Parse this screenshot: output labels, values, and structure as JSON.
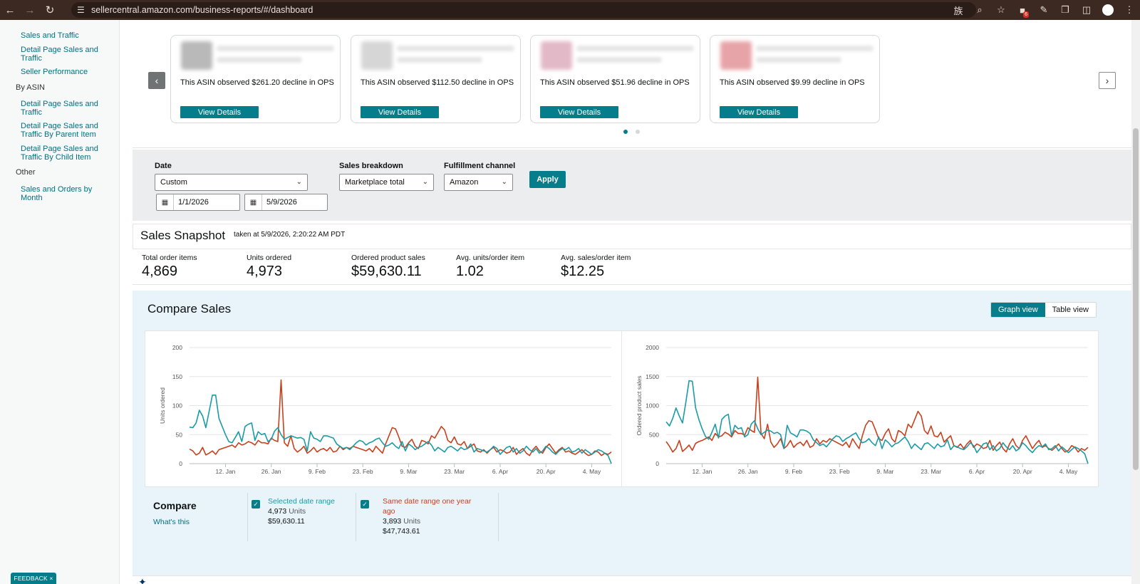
{
  "browser": {
    "url": "sellercentral.amazon.com/business-reports/#/dashboard",
    "extension_badge": "6"
  },
  "sidebar": {
    "items": [
      {
        "type": "link",
        "label": "Sales and Traffic"
      },
      {
        "type": "link",
        "label": "Detail Page Sales and Traffic"
      },
      {
        "type": "link",
        "label": "Seller Performance"
      },
      {
        "type": "heading",
        "label": "By ASIN"
      },
      {
        "type": "link",
        "label": "Detail Page Sales and Traffic"
      },
      {
        "type": "link",
        "label": "Detail Page Sales and Traffic By Parent Item"
      },
      {
        "type": "link",
        "label": "Detail Page Sales and Traffic By Child Item"
      },
      {
        "type": "heading",
        "label": "Other"
      },
      {
        "type": "link",
        "label": "Sales and Orders by Month"
      }
    ],
    "feedback_label": "FEEDBACK",
    "feedback_close": "×"
  },
  "carousel": {
    "cards": [
      {
        "text": "This ASIN observed $261.20 decline in OPS",
        "button": "View Details",
        "thumb_color": "#b9b9b9"
      },
      {
        "text": "This ASIN observed $112.50 decline in OPS",
        "button": "View Details",
        "thumb_color": "#d6d6d6"
      },
      {
        "text": "This ASIN observed $51.96 decline in OPS",
        "button": "View Details",
        "thumb_color": "#e2b9c7"
      },
      {
        "text": "This ASIN observed $9.99 decline in OPS",
        "button": "View Details",
        "thumb_color": "#e7a4a8"
      }
    ],
    "active_page": 1,
    "page_count": 2
  },
  "filters": {
    "date_label": "Date",
    "date_value": "Custom",
    "start_date": "1/1/2026",
    "end_date": "5/9/2026",
    "breakdown_label": "Sales breakdown",
    "breakdown_value": "Marketplace total",
    "channel_label": "Fulfillment channel",
    "channel_value": "Amazon",
    "apply_label": "Apply"
  },
  "snapshot": {
    "title": "Sales Snapshot",
    "taken_at": "taken at 5/9/2026, 2:20:22 AM PDT",
    "metrics": [
      {
        "label": "Total order items",
        "value": "4,869"
      },
      {
        "label": "Units ordered",
        "value": "4,973"
      },
      {
        "label": "Ordered product sales",
        "value": "$59,630.11"
      },
      {
        "label": "Avg. units/order item",
        "value": "1.02"
      },
      {
        "label": "Avg. sales/order item",
        "value": "$12.25"
      }
    ]
  },
  "compare": {
    "title": "Compare Sales",
    "graph_view_label": "Graph view",
    "table_view_label": "Table view",
    "legend_title": "Compare",
    "legend_help": "What's this",
    "series": [
      {
        "name": "Selected date range",
        "units_value": "4,973",
        "units_label": "Units",
        "sales": "$59,630.11",
        "color": "#1a9ba6"
      },
      {
        "name": "Same date range one year ago",
        "units_value": "3,893",
        "units_label": "Units",
        "sales": "$47,743.61",
        "color": "#c8401c"
      }
    ]
  },
  "chart_data": [
    {
      "type": "line",
      "ylabel": "Units ordered",
      "ylim": [
        0,
        200
      ],
      "yticks": [
        "0",
        "50",
        "100",
        "150",
        "200"
      ],
      "xticks": [
        "12. Jan",
        "26. Jan",
        "9. Feb",
        "23. Feb",
        "9. Mar",
        "23. Mar",
        "6. Apr",
        "20. Apr",
        "4. May"
      ],
      "xtick_days": [
        11,
        25,
        39,
        53,
        67,
        81,
        95,
        109,
        123
      ],
      "grid": true,
      "series": [
        {
          "name": "Selected date range",
          "color": "#1a9ba6",
          "values": [
            63,
            62,
            70,
            92,
            82,
            62,
            90,
            118,
            118,
            78,
            64,
            50,
            38,
            36,
            45,
            55,
            38,
            64,
            68,
            70,
            40,
            55,
            50,
            52,
            38,
            42,
            56,
            62,
            50,
            42,
            45,
            48,
            46,
            44,
            45,
            42,
            22,
            55,
            44,
            42,
            38,
            48,
            48,
            46,
            44,
            34,
            30,
            26,
            28,
            24,
            30,
            36,
            40,
            38,
            32,
            36,
            38,
            42,
            44,
            36,
            30,
            32,
            36,
            30,
            26,
            38,
            22,
            34,
            30,
            24,
            28,
            30,
            34,
            38,
            32,
            22,
            28,
            24,
            20,
            28,
            30,
            26,
            22,
            28,
            24,
            26,
            34,
            20,
            26,
            24,
            22,
            20,
            24,
            30,
            26,
            16,
            22,
            28,
            30,
            20,
            26,
            18,
            22,
            30,
            24,
            20,
            26,
            18,
            22,
            30,
            26,
            20,
            16,
            22,
            26,
            24,
            28,
            20,
            22,
            26,
            18,
            24,
            20,
            16,
            20,
            24,
            22,
            18,
            14,
            0
          ]
        },
        {
          "name": "Same date range one year ago",
          "color": "#c8401c",
          "values": [
            25,
            22,
            15,
            18,
            28,
            15,
            18,
            22,
            16,
            24,
            26,
            28,
            30,
            32,
            28,
            36,
            32,
            34,
            38,
            36,
            32,
            40,
            36,
            36,
            34,
            44,
            40,
            38,
            144,
            36,
            30,
            48,
            26,
            20,
            24,
            30,
            18,
            22,
            28,
            20,
            24,
            26,
            22,
            28,
            20,
            22,
            30,
            24,
            28,
            26,
            30,
            28,
            26,
            24,
            22,
            26,
            20,
            30,
            24,
            18,
            34,
            48,
            62,
            60,
            46,
            30,
            28,
            36,
            42,
            30,
            26,
            40,
            38,
            34,
            48,
            44,
            54,
            64,
            58,
            40,
            36,
            46,
            34,
            32,
            38,
            26,
            30,
            34,
            22,
            20,
            24,
            18,
            24,
            28,
            20,
            24,
            22,
            18,
            20,
            28,
            16,
            22,
            26,
            18,
            14,
            24,
            30,
            22,
            18,
            28,
            34,
            26,
            18,
            24,
            28,
            20,
            22,
            18,
            16,
            20,
            24,
            18,
            14,
            16,
            22,
            20,
            14,
            18,
            16,
            20
          ]
        }
      ]
    },
    {
      "type": "line",
      "ylabel": "Ordered product sales",
      "ylim": [
        0,
        2000
      ],
      "yticks": [
        "0",
        "500",
        "1000",
        "1500",
        "2000"
      ],
      "xticks": [
        "12. Jan",
        "26. Jan",
        "9. Feb",
        "23. Feb",
        "9. Mar",
        "23. Mar",
        "6. Apr",
        "20. Apr",
        "4. May"
      ],
      "xtick_days": [
        11,
        25,
        39,
        53,
        67,
        81,
        95,
        109,
        123
      ],
      "grid": true,
      "series": [
        {
          "name": "Selected date range",
          "color": "#1a9ba6",
          "values": [
            720,
            650,
            780,
            960,
            820,
            700,
            1050,
            1430,
            1420,
            960,
            760,
            600,
            470,
            420,
            540,
            680,
            440,
            760,
            820,
            850,
            480,
            660,
            600,
            620,
            460,
            500,
            680,
            740,
            600,
            500,
            540,
            580,
            560,
            520,
            540,
            500,
            260,
            660,
            530,
            500,
            460,
            580,
            580,
            560,
            520,
            410,
            360,
            310,
            340,
            290,
            360,
            430,
            480,
            460,
            380,
            430,
            460,
            500,
            530,
            430,
            360,
            380,
            430,
            360,
            310,
            460,
            260,
            410,
            360,
            290,
            340,
            360,
            410,
            460,
            380,
            260,
            340,
            290,
            240,
            340,
            360,
            310,
            260,
            340,
            290,
            310,
            410,
            240,
            310,
            290,
            260,
            240,
            290,
            360,
            310,
            190,
            260,
            340,
            360,
            240,
            310,
            220,
            260,
            360,
            290,
            240,
            310,
            220,
            260,
            360,
            310,
            240,
            190,
            260,
            310,
            290,
            340,
            240,
            260,
            310,
            220,
            290,
            240,
            190,
            240,
            290,
            260,
            220,
            170,
            0
          ]
        },
        {
          "name": "Same date range one year ago",
          "color": "#c8401c",
          "values": [
            380,
            300,
            200,
            260,
            400,
            210,
            260,
            320,
            230,
            350,
            380,
            400,
            430,
            460,
            400,
            520,
            460,
            480,
            540,
            510,
            460,
            570,
            520,
            520,
            490,
            620,
            570,
            540,
            1490,
            520,
            430,
            680,
            370,
            280,
            340,
            430,
            260,
            310,
            400,
            280,
            340,
            370,
            310,
            400,
            280,
            310,
            430,
            340,
            400,
            370,
            430,
            400,
            370,
            340,
            310,
            370,
            280,
            430,
            340,
            260,
            480,
            660,
            740,
            720,
            580,
            430,
            400,
            520,
            600,
            430,
            370,
            570,
            540,
            480,
            680,
            620,
            760,
            900,
            820,
            570,
            510,
            650,
            480,
            460,
            540,
            370,
            430,
            480,
            310,
            280,
            340,
            260,
            340,
            400,
            280,
            340,
            310,
            260,
            280,
            400,
            230,
            310,
            370,
            260,
            200,
            340,
            430,
            310,
            260,
            400,
            480,
            370,
            260,
            340,
            400,
            280,
            310,
            260,
            230,
            280,
            340,
            260,
            200,
            230,
            310,
            280,
            200,
            260,
            230,
            280
          ]
        }
      ]
    }
  ]
}
